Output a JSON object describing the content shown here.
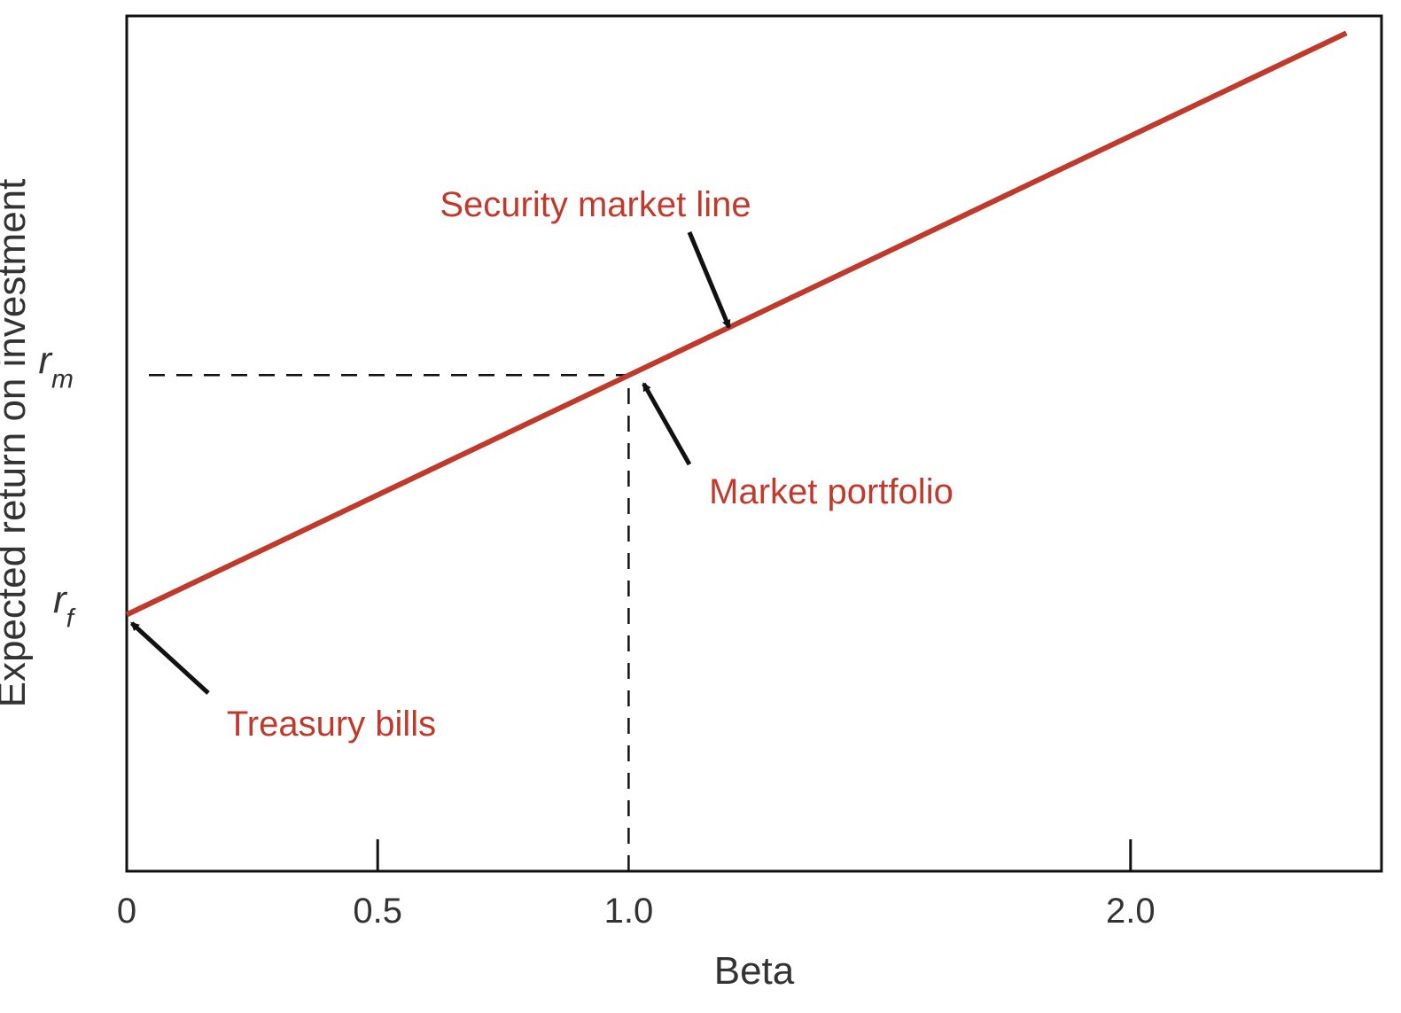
{
  "colors": {
    "line": "#C0392B",
    "annotation": "#C0392B",
    "axis": "#111111",
    "text": "#333333",
    "arrow": "#111111"
  },
  "chart_data": {
    "type": "line",
    "title": "",
    "xlabel": "Beta",
    "ylabel": "Expected return on investment",
    "xlim": [
      0,
      2.5
    ],
    "ylim": [
      0,
      1
    ],
    "grid": false,
    "x_ticks": [
      {
        "value": 0,
        "label": "0"
      },
      {
        "value": 0.5,
        "label": "0.5"
      },
      {
        "value": 1.0,
        "label": "1.0"
      },
      {
        "value": 2.0,
        "label": "2.0"
      }
    ],
    "y_ticks": [
      {
        "value": 0.3,
        "label_main": "r",
        "label_sub": "f"
      },
      {
        "value": 0.58,
        "label_main": "r",
        "label_sub": "m"
      }
    ],
    "series": [
      {
        "x": [
          0,
          2.43
        ],
        "y": [
          0.3,
          0.98
        ]
      }
    ],
    "reference_lines": [
      {
        "orientation": "horizontal",
        "y": 0.58,
        "x_from": 0,
        "x_to": 1.0,
        "style": "dashed"
      },
      {
        "orientation": "vertical",
        "x": 1.0,
        "y_from": 0,
        "y_to": 0.58,
        "style": "dashed"
      }
    ],
    "annotations": [
      {
        "text": "Security market line",
        "target_x": 1.2,
        "target_y": 0.636
      },
      {
        "text": "Market portfolio",
        "target_x": 1.03,
        "target_y": 0.57
      },
      {
        "text": "Treasury bills",
        "target_x": 0.01,
        "target_y": 0.29
      }
    ]
  }
}
